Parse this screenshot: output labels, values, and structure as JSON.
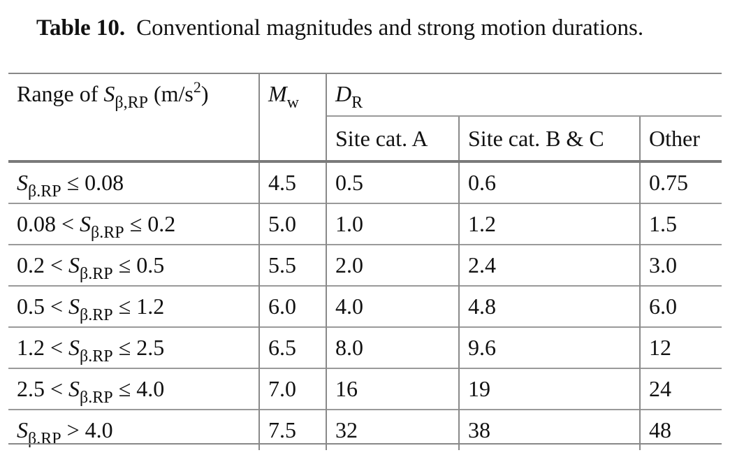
{
  "caption": {
    "label": "Table 10.",
    "text": "Conventional magnitudes and strong motion durations."
  },
  "header": {
    "range": {
      "prefix": "Range of ",
      "symbol": "S",
      "subscript": "β,RP",
      "unit_open": " (m/s",
      "unit_sup": "2",
      "unit_close": ")"
    },
    "mw": {
      "symbol": "M",
      "subscript": "w"
    },
    "dr": {
      "symbol": "D",
      "subscript": "R"
    },
    "sub_columns": [
      "Site cat. A",
      "Site cat. B & C",
      "Other"
    ]
  },
  "rows": [
    {
      "left": "",
      "symbol": "S",
      "sub": "β.RP",
      "right": " ≤ 0.08",
      "mw": "4.5",
      "a": "0.5",
      "bc": "0.6",
      "other": "0.75"
    },
    {
      "left": "0.08 < ",
      "symbol": "S",
      "sub": "β.RP",
      "right": " ≤ 0.2",
      "mw": "5.0",
      "a": "1.0",
      "bc": "1.2",
      "other": "1.5"
    },
    {
      "left": "0.2 < ",
      "symbol": "S",
      "sub": "β.RP",
      "right": " ≤ 0.5",
      "mw": "5.5",
      "a": "2.0",
      "bc": "2.4",
      "other": "3.0"
    },
    {
      "left": "0.5 < ",
      "symbol": "S",
      "sub": "β.RP",
      "right": " ≤ 1.2",
      "mw": "6.0",
      "a": "4.0",
      "bc": "4.8",
      "other": "6.0"
    },
    {
      "left": "1.2 < ",
      "symbol": "S",
      "sub": "β.RP",
      "right": " ≤ 2.5",
      "mw": "6.5",
      "a": "8.0",
      "bc": "9.6",
      "other": "12"
    },
    {
      "left": "2.5 < ",
      "symbol": "S",
      "sub": "β.RP",
      "right": " ≤ 4.0",
      "mw": "7.0",
      "a": "16",
      "bc": "19",
      "other": "24"
    },
    {
      "left": "",
      "symbol": "S",
      "sub": "β.RP",
      "right": " > 4.0",
      "mw": "7.5",
      "a": "32",
      "bc": "38",
      "other": "48"
    }
  ]
}
